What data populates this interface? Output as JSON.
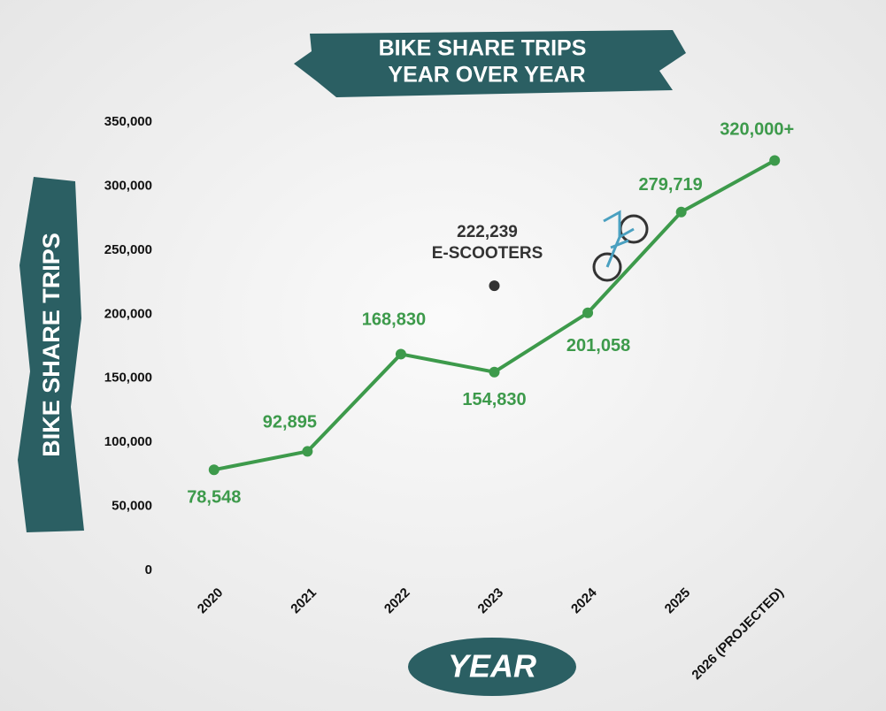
{
  "chart_data": {
    "type": "line",
    "title": [
      "BIKE SHARE TRIPS",
      "YEAR OVER YEAR"
    ],
    "x_label": "YEAR",
    "y_label": "BIKE SHARE TRIPS",
    "categories": [
      "2020",
      "2021",
      "2022",
      "2023",
      "2024",
      "2025",
      "2026 (PROJECTED)"
    ],
    "values": [
      78548,
      92895,
      168830,
      154830,
      201058,
      279719,
      320000
    ],
    "value_labels": [
      "78,548",
      "92,895",
      "168,830",
      "154,830",
      "201,058",
      "279,719",
      "320,000+"
    ],
    "color": "#3d9a4b",
    "ylim": [
      0,
      350000
    ],
    "yticks": [
      0,
      {
        "value": 50000,
        "label": "50,000"
      },
      {
        "value": 100000,
        "label": "100,000"
      },
      {
        "value": 150000,
        "label": "150,000"
      },
      {
        "value": 200000,
        "label": "200,000"
      },
      {
        "value": 250000,
        "label": "250,000"
      },
      {
        "value": 300000,
        "label": "300,000"
      },
      {
        "value": 350000,
        "label": "350,000"
      }
    ],
    "grid": false,
    "annotation": {
      "x": "2023",
      "value": 222239,
      "value_label": "222,239",
      "text": "E-SCOOTERS",
      "color": "#333333"
    }
  }
}
